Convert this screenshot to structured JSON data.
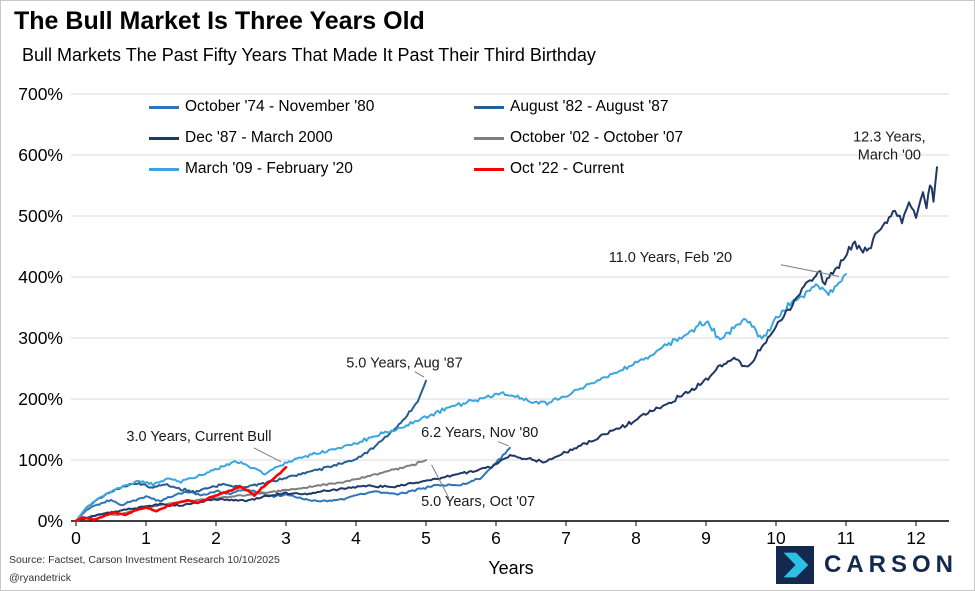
{
  "title": "The Bull Market Is Three Years Old",
  "subtitle": "Bull Markets The Past Fifty Years That Made It Past Their Third Birthday",
  "source": {
    "line1": "Source: Factset, Carson Investment Research 10/10/2025",
    "line2": "@ryandetrick"
  },
  "logo": {
    "text": "CARSON",
    "navy": "#14294E",
    "cyan": "#2BC0E4"
  },
  "chart_data": {
    "type": "line",
    "title": "The Bull Market Is Three Years Old",
    "subtitle": "Bull Markets The Past Fifty Years That Made It Past Their Third Birthday",
    "xlabel": "Years",
    "ylabel": "",
    "xlim": [
      0,
      12.5
    ],
    "ylim": [
      0,
      700
    ],
    "grid": "horizontal",
    "legend_position": "top-inside",
    "x_ticks": [
      0,
      1,
      2,
      3,
      4,
      5,
      6,
      7,
      8,
      9,
      10,
      11,
      12
    ],
    "y_ticks": [
      {
        "value": 0,
        "label": "0%"
      },
      {
        "value": 100,
        "label": "100%"
      },
      {
        "value": 200,
        "label": "200%"
      },
      {
        "value": 300,
        "label": "300%"
      },
      {
        "value": 400,
        "label": "400%"
      },
      {
        "value": 500,
        "label": "500%"
      },
      {
        "value": 600,
        "label": "600%"
      },
      {
        "value": 700,
        "label": "700%"
      }
    ],
    "draw_order": [
      0,
      1,
      3,
      4,
      2,
      5
    ],
    "series": [
      {
        "name": "October '74 - November '80",
        "color": "#2E75B6",
        "width": 2,
        "noise": 1,
        "points": [
          [
            0,
            0
          ],
          [
            0.15,
            18
          ],
          [
            0.3,
            27
          ],
          [
            0.5,
            34
          ],
          [
            0.65,
            26
          ],
          [
            0.8,
            33
          ],
          [
            1.0,
            40
          ],
          [
            1.2,
            33
          ],
          [
            1.4,
            42
          ],
          [
            1.6,
            48
          ],
          [
            1.8,
            42
          ],
          [
            2.0,
            50
          ],
          [
            2.2,
            44
          ],
          [
            2.4,
            52
          ],
          [
            2.6,
            47
          ],
          [
            2.8,
            40
          ],
          [
            3.0,
            44
          ],
          [
            3.2,
            38
          ],
          [
            3.5,
            32
          ],
          [
            3.8,
            36
          ],
          [
            4.0,
            42
          ],
          [
            4.3,
            48
          ],
          [
            4.6,
            44
          ],
          [
            4.9,
            52
          ],
          [
            5.2,
            60
          ],
          [
            5.5,
            58
          ],
          [
            5.8,
            72
          ],
          [
            6.0,
            95
          ],
          [
            6.1,
            108
          ],
          [
            6.2,
            120
          ]
        ]
      },
      {
        "name": "August '82 - August '87",
        "color": "#255E91",
        "width": 2,
        "noise": 1,
        "points": [
          [
            0,
            0
          ],
          [
            0.15,
            22
          ],
          [
            0.3,
            35
          ],
          [
            0.5,
            48
          ],
          [
            0.7,
            58
          ],
          [
            0.9,
            62
          ],
          [
            1.1,
            55
          ],
          [
            1.3,
            60
          ],
          [
            1.5,
            52
          ],
          [
            1.7,
            48
          ],
          [
            1.9,
            55
          ],
          [
            2.1,
            60
          ],
          [
            2.4,
            55
          ],
          [
            2.7,
            62
          ],
          [
            3.0,
            72
          ],
          [
            3.3,
            80
          ],
          [
            3.6,
            88
          ],
          [
            3.9,
            98
          ],
          [
            4.1,
            108
          ],
          [
            4.3,
            125
          ],
          [
            4.5,
            145
          ],
          [
            4.7,
            168
          ],
          [
            4.85,
            190
          ],
          [
            4.95,
            215
          ],
          [
            5.0,
            230
          ]
        ]
      },
      {
        "name": "Dec '87 - March 2000",
        "color": "#1F3864",
        "width": 2,
        "noise": 1,
        "points": [
          [
            0,
            0
          ],
          [
            0.3,
            10
          ],
          [
            0.6,
            16
          ],
          [
            0.9,
            22
          ],
          [
            1.2,
            27
          ],
          [
            1.5,
            25
          ],
          [
            1.8,
            32
          ],
          [
            2.1,
            36
          ],
          [
            2.4,
            33
          ],
          [
            2.7,
            40
          ],
          [
            3.0,
            46
          ],
          [
            3.3,
            44
          ],
          [
            3.6,
            50
          ],
          [
            3.9,
            54
          ],
          [
            4.2,
            58
          ],
          [
            4.5,
            56
          ],
          [
            4.8,
            62
          ],
          [
            5.1,
            68
          ],
          [
            5.4,
            75
          ],
          [
            5.7,
            82
          ],
          [
            6.0,
            92
          ],
          [
            6.2,
            108
          ],
          [
            6.4,
            102
          ],
          [
            6.7,
            98
          ],
          [
            7.0,
            112
          ],
          [
            7.3,
            128
          ],
          [
            7.6,
            145
          ],
          [
            7.9,
            160
          ],
          [
            8.2,
            178
          ],
          [
            8.5,
            196
          ],
          [
            8.8,
            215
          ],
          [
            9.0,
            232
          ],
          [
            9.2,
            255
          ],
          [
            9.4,
            268
          ],
          [
            9.6,
            252
          ],
          [
            9.8,
            285
          ],
          [
            10.0,
            320
          ],
          [
            10.2,
            350
          ],
          [
            10.4,
            385
          ],
          [
            10.6,
            410
          ],
          [
            10.7,
            390
          ],
          [
            10.9,
            420
          ],
          [
            11.1,
            455
          ],
          [
            11.3,
            440
          ],
          [
            11.5,
            480
          ],
          [
            11.7,
            510
          ],
          [
            11.8,
            490
          ],
          [
            11.9,
            520
          ],
          [
            12.0,
            500
          ],
          [
            12.1,
            540
          ],
          [
            12.15,
            515
          ],
          [
            12.2,
            555
          ],
          [
            12.25,
            530
          ],
          [
            12.3,
            580
          ]
        ]
      },
      {
        "name": "October '02 - October '07",
        "color": "#7F7F7F",
        "width": 2,
        "noise": 0.7,
        "points": [
          [
            0,
            0
          ],
          [
            0.2,
            6
          ],
          [
            0.4,
            12
          ],
          [
            0.6,
            10
          ],
          [
            0.8,
            16
          ],
          [
            1.0,
            22
          ],
          [
            1.3,
            28
          ],
          [
            1.6,
            33
          ],
          [
            1.9,
            36
          ],
          [
            2.2,
            40
          ],
          [
            2.5,
            44
          ],
          [
            2.8,
            48
          ],
          [
            3.1,
            52
          ],
          [
            3.4,
            57
          ],
          [
            3.7,
            62
          ],
          [
            4.0,
            68
          ],
          [
            4.2,
            74
          ],
          [
            4.4,
            80
          ],
          [
            4.6,
            86
          ],
          [
            4.8,
            92
          ],
          [
            5.0,
            100
          ]
        ]
      },
      {
        "name": "March '09 - February '20",
        "color": "#3BA6DD",
        "width": 2,
        "noise": 1,
        "points": [
          [
            0,
            0
          ],
          [
            0.15,
            22
          ],
          [
            0.3,
            35
          ],
          [
            0.5,
            48
          ],
          [
            0.7,
            58
          ],
          [
            0.9,
            66
          ],
          [
            1.1,
            60
          ],
          [
            1.3,
            70
          ],
          [
            1.5,
            64
          ],
          [
            1.7,
            72
          ],
          [
            1.9,
            80
          ],
          [
            2.1,
            90
          ],
          [
            2.3,
            98
          ],
          [
            2.5,
            88
          ],
          [
            2.7,
            78
          ],
          [
            2.9,
            90
          ],
          [
            3.1,
            100
          ],
          [
            3.4,
            110
          ],
          [
            3.7,
            118
          ],
          [
            4.0,
            128
          ],
          [
            4.3,
            140
          ],
          [
            4.6,
            152
          ],
          [
            4.9,
            166
          ],
          [
            5.2,
            180
          ],
          [
            5.5,
            192
          ],
          [
            5.8,
            200
          ],
          [
            6.1,
            210
          ],
          [
            6.4,
            198
          ],
          [
            6.7,
            192
          ],
          [
            7.0,
            205
          ],
          [
            7.3,
            222
          ],
          [
            7.6,
            238
          ],
          [
            7.9,
            252
          ],
          [
            8.2,
            272
          ],
          [
            8.5,
            292
          ],
          [
            8.8,
            312
          ],
          [
            9.0,
            328
          ],
          [
            9.2,
            298
          ],
          [
            9.4,
            318
          ],
          [
            9.6,
            330
          ],
          [
            9.8,
            295
          ],
          [
            10.0,
            332
          ],
          [
            10.2,
            355
          ],
          [
            10.4,
            372
          ],
          [
            10.6,
            388
          ],
          [
            10.75,
            368
          ],
          [
            10.9,
            392
          ],
          [
            11.0,
            405
          ]
        ]
      },
      {
        "name": "Oct '22 - Current",
        "color": "#FF0000",
        "width": 2.6,
        "noise": 0.5,
        "points": [
          [
            0,
            0
          ],
          [
            0.1,
            6
          ],
          [
            0.25,
            2
          ],
          [
            0.4,
            8
          ],
          [
            0.55,
            14
          ],
          [
            0.7,
            10
          ],
          [
            0.85,
            17
          ],
          [
            1.0,
            22
          ],
          [
            1.15,
            16
          ],
          [
            1.3,
            24
          ],
          [
            1.45,
            30
          ],
          [
            1.6,
            34
          ],
          [
            1.75,
            30
          ],
          [
            1.9,
            38
          ],
          [
            2.05,
            44
          ],
          [
            2.2,
            50
          ],
          [
            2.35,
            56
          ],
          [
            2.45,
            50
          ],
          [
            2.55,
            42
          ],
          [
            2.65,
            54
          ],
          [
            2.75,
            62
          ],
          [
            2.85,
            72
          ],
          [
            2.95,
            82
          ],
          [
            3.0,
            88
          ]
        ]
      }
    ],
    "annotations": [
      {
        "text": "3.0 Years, Current Bull",
        "x": 0.72,
        "y": 131,
        "anchor": "start",
        "leader": [
          2.54,
          120,
          2.93,
          97
        ]
      },
      {
        "text": "5.0 Years, Aug '87",
        "x": 3.86,
        "y": 252,
        "anchor": "start",
        "leader": [
          4.84,
          245,
          4.97,
          236
        ]
      },
      {
        "text": "6.2 Years, Nov '80",
        "x": 4.93,
        "y": 138,
        "anchor": "start",
        "leader": [
          6.03,
          130,
          6.18,
          123
        ]
      },
      {
        "text": "5.0 Years, Oct '07",
        "x": 4.93,
        "y": 25,
        "anchor": "start",
        "leader": [
          5.33,
          37,
          5.08,
          92
        ]
      },
      {
        "text": "11.0 Years, Feb '20",
        "x": 7.61,
        "y": 425,
        "anchor": "start",
        "leader": [
          10.07,
          420,
          10.9,
          401
        ]
      },
      {
        "text": "12.3 Years,\nMarch '00",
        "x": 11.62,
        "y": 622,
        "anchor": "middle",
        "leader": null
      }
    ]
  }
}
